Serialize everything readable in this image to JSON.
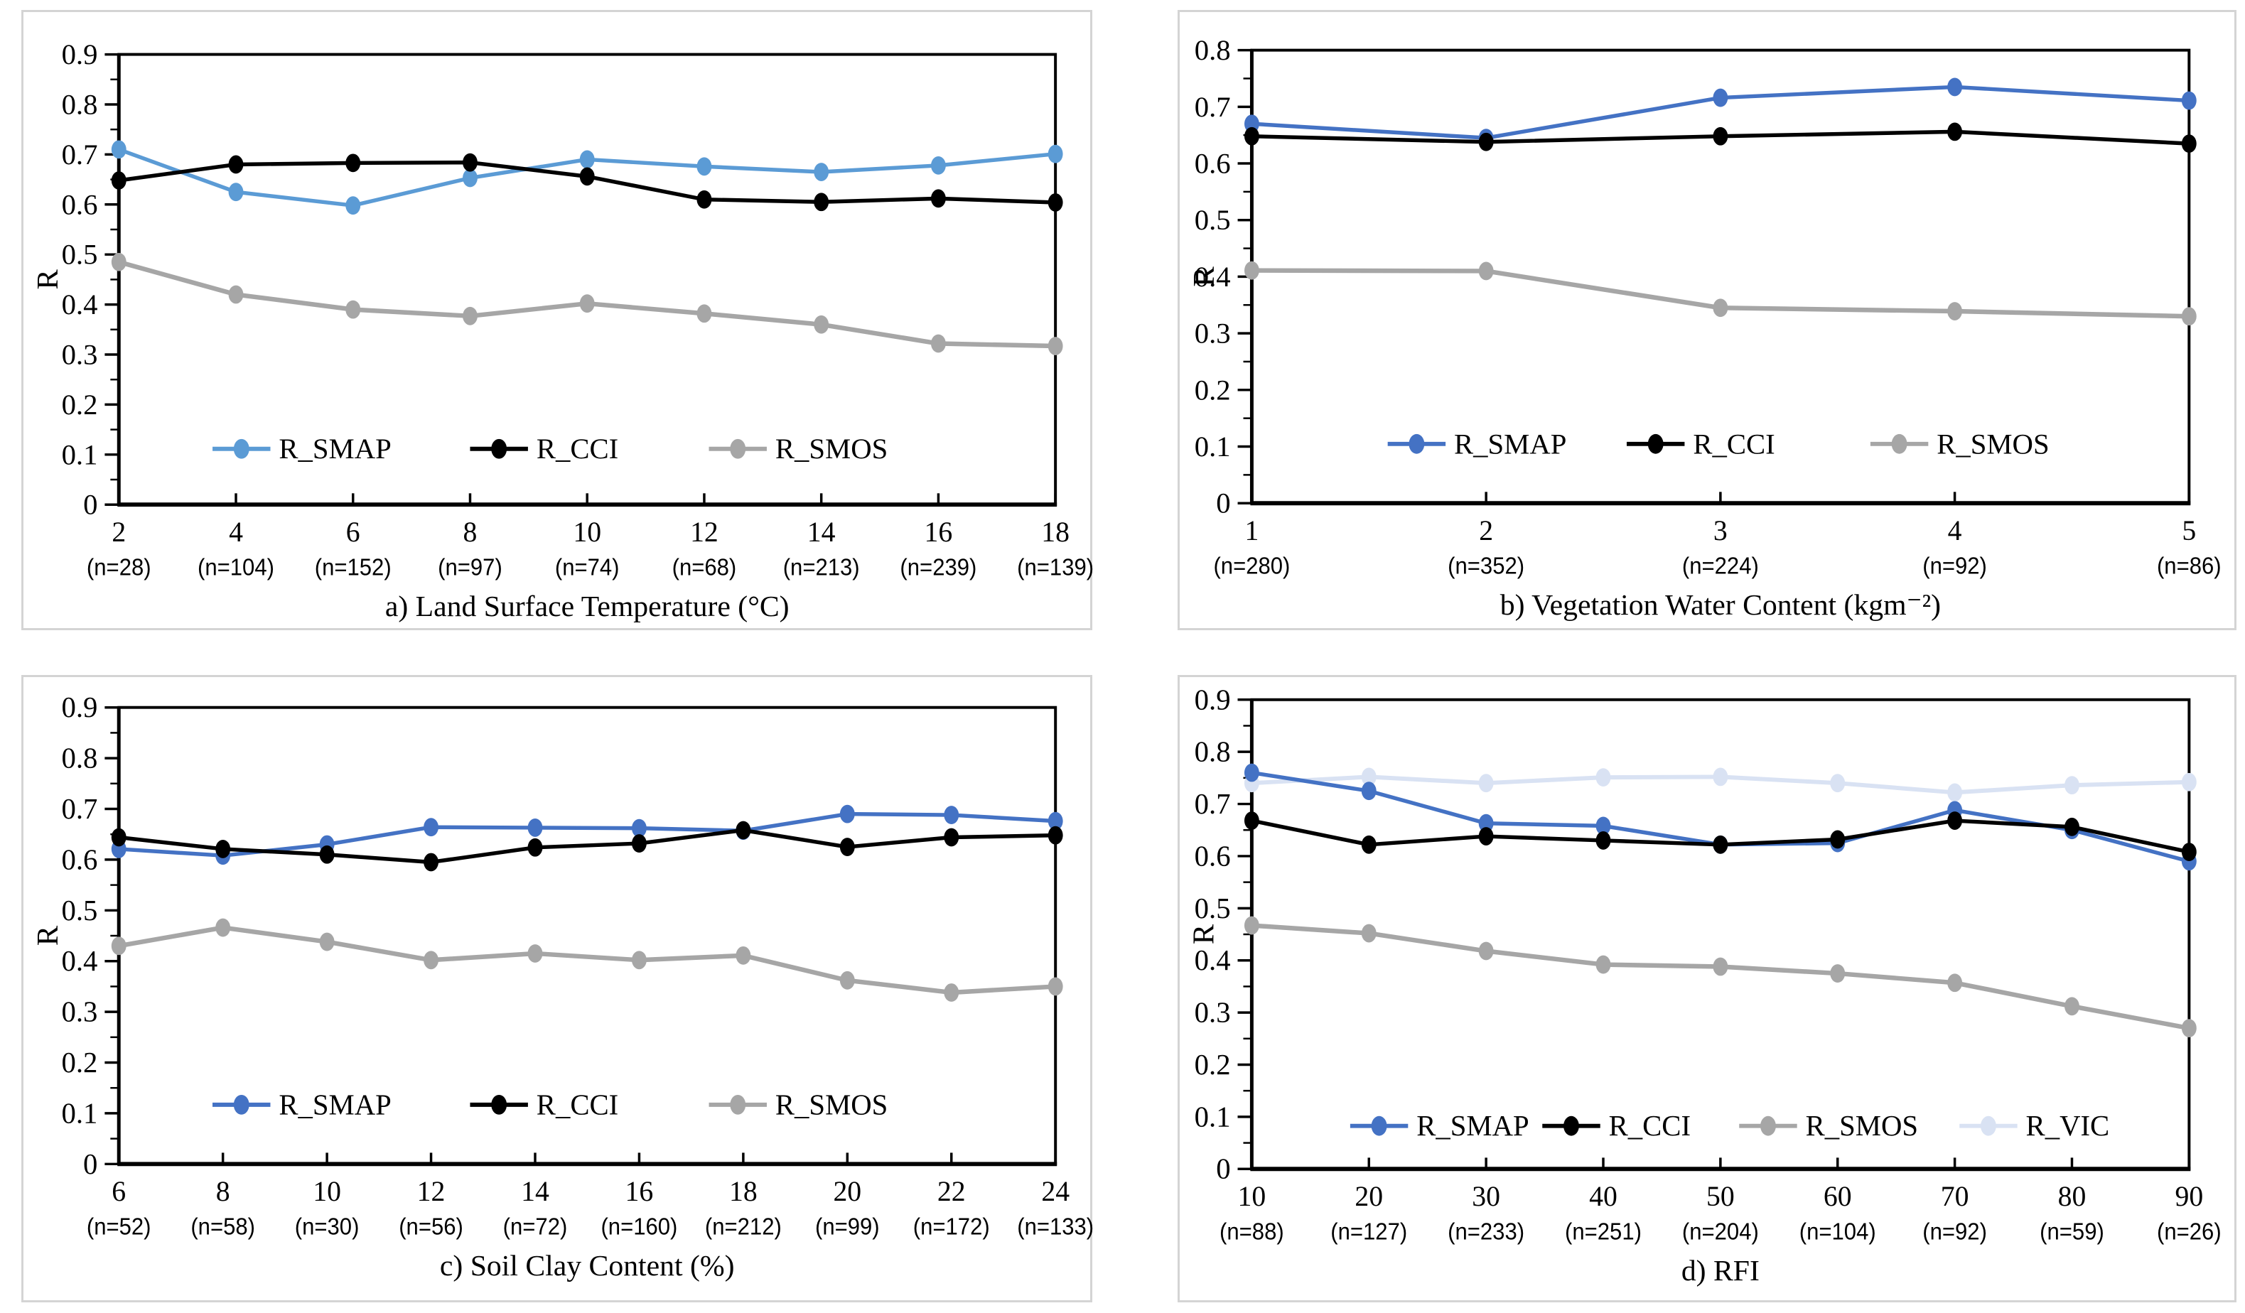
{
  "figure": {
    "ylabel": "R",
    "legend_entries": [
      "R_SMAP",
      "R_CCI",
      "R_SMOS",
      "R_VIC"
    ],
    "colors": {
      "smap_panel_a": "#5B9BD5",
      "smap_panels_bcd": "#4472C4",
      "cci": "#000000",
      "smos": "#A6A6A6",
      "vic": "#D9E2F3"
    }
  },
  "chart_data": [
    {
      "type": "line",
      "panel": "a",
      "title": "a) Land Surface Temperature (°C)",
      "ylabel": "R",
      "ylim": [
        0,
        0.9
      ],
      "grid": false,
      "legend_position": "inside-bottom",
      "yticks": [
        "0",
        "0.1",
        "0.2",
        "0.3",
        "0.4",
        "0.5",
        "0.6",
        "0.7",
        "0.8",
        "0.9"
      ],
      "categories": [
        "2",
        "4",
        "6",
        "8",
        "10",
        "12",
        "14",
        "16",
        "18"
      ],
      "counts": [
        "(n=28)",
        "(n=104)",
        "(n=152)",
        "(n=97)",
        "(n=74)",
        "(n=68)",
        "(n=213)",
        "(n=239)",
        "(n=139)"
      ],
      "series": [
        {
          "name": "R_SMAP",
          "color": "#5B9BD5",
          "z": 3,
          "values": [
            0.71,
            0.625,
            0.598,
            0.653,
            0.69,
            0.676,
            0.665,
            0.678,
            0.701
          ]
        },
        {
          "name": "R_CCI",
          "color": "#000000",
          "z": 4,
          "values": [
            0.648,
            0.68,
            0.683,
            0.684,
            0.656,
            0.61,
            0.605,
            0.612,
            0.604
          ]
        },
        {
          "name": "R_SMOS",
          "color": "#A6A6A6",
          "z": 2,
          "values": [
            0.485,
            0.42,
            0.39,
            0.377,
            0.402,
            0.382,
            0.36,
            0.322,
            0.317
          ]
        }
      ]
    },
    {
      "type": "line",
      "panel": "b",
      "title": "b) Vegetation Water Content (kgm⁻²)",
      "ylabel": "R",
      "ylim": [
        0,
        0.8
      ],
      "grid": false,
      "legend_position": "inside-bottom",
      "yticks": [
        "0",
        "0.1",
        "0.2",
        "0.3",
        "0.4",
        "0.5",
        "0.6",
        "0.7",
        "0.8"
      ],
      "categories": [
        "1",
        "2",
        "3",
        "4",
        "5"
      ],
      "counts": [
        "(n=280)",
        "(n=352)",
        "(n=224)",
        "(n=92)",
        "(n=86)"
      ],
      "series": [
        {
          "name": "R_SMAP",
          "color": "#4472C4",
          "z": 3,
          "values": [
            0.67,
            0.645,
            0.716,
            0.735,
            0.711
          ]
        },
        {
          "name": "R_CCI",
          "color": "#000000",
          "z": 4,
          "values": [
            0.648,
            0.638,
            0.648,
            0.656,
            0.635
          ]
        },
        {
          "name": "R_SMOS",
          "color": "#A6A6A6",
          "z": 2,
          "values": [
            0.411,
            0.41,
            0.345,
            0.339,
            0.33
          ]
        }
      ]
    },
    {
      "type": "line",
      "panel": "c",
      "title": "c) Soil Clay Content (%)",
      "ylabel": "R",
      "ylim": [
        0,
        0.9
      ],
      "grid": false,
      "legend_position": "inside-bottom",
      "yticks": [
        "0",
        "0.1",
        "0.2",
        "0.3",
        "0.4",
        "0.5",
        "0.6",
        "0.7",
        "0.8",
        "0.9"
      ],
      "categories": [
        "6",
        "8",
        "10",
        "12",
        "14",
        "16",
        "18",
        "20",
        "22",
        "24"
      ],
      "counts": [
        "(n=52)",
        "(n=58)",
        "(n=30)",
        "(n=56)",
        "(n=72)",
        "(n=160)",
        "(n=212)",
        "(n=99)",
        "(n=172)",
        "(n=133)"
      ],
      "series": [
        {
          "name": "R_SMAP",
          "color": "#4472C4",
          "z": 3,
          "values": [
            0.621,
            0.608,
            0.63,
            0.664,
            0.663,
            0.662,
            0.657,
            0.69,
            0.688,
            0.676
          ]
        },
        {
          "name": "R_CCI",
          "color": "#000000",
          "z": 4,
          "values": [
            0.644,
            0.621,
            0.61,
            0.595,
            0.624,
            0.632,
            0.658,
            0.625,
            0.644,
            0.648
          ]
        },
        {
          "name": "R_SMOS",
          "color": "#A6A6A6",
          "z": 2,
          "values": [
            0.43,
            0.466,
            0.438,
            0.402,
            0.415,
            0.402,
            0.411,
            0.362,
            0.338,
            0.35
          ]
        }
      ]
    },
    {
      "type": "line",
      "panel": "d",
      "title": "d) RFI",
      "ylabel": "R",
      "ylim": [
        0,
        0.9
      ],
      "grid": false,
      "legend_position": "inside-bottom",
      "yticks": [
        "0",
        "0.1",
        "0.2",
        "0.3",
        "0.4",
        "0.5",
        "0.6",
        "0.7",
        "0.8",
        "0.9"
      ],
      "categories": [
        "10",
        "20",
        "30",
        "40",
        "50",
        "60",
        "70",
        "80",
        "90"
      ],
      "counts": [
        "(n=88)",
        "(n=127)",
        "(n=233)",
        "(n=251)",
        "(n=204)",
        "(n=104)",
        "(n=92)",
        "(n=59)",
        "(n=26)"
      ],
      "series": [
        {
          "name": "R_SMAP",
          "color": "#4472C4",
          "z": 3,
          "values": [
            0.76,
            0.725,
            0.663,
            0.658,
            0.622,
            0.625,
            0.688,
            0.65,
            0.59
          ]
        },
        {
          "name": "R_CCI",
          "color": "#000000",
          "z": 4,
          "values": [
            0.668,
            0.622,
            0.638,
            0.63,
            0.622,
            0.632,
            0.668,
            0.656,
            0.608
          ]
        },
        {
          "name": "R_SMOS",
          "color": "#A6A6A6",
          "z": 2,
          "values": [
            0.467,
            0.452,
            0.418,
            0.392,
            0.388,
            0.375,
            0.357,
            0.312,
            0.27
          ]
        },
        {
          "name": "R_VIC",
          "color": "#D9E2F3",
          "z": 1,
          "values": [
            0.74,
            0.752,
            0.74,
            0.751,
            0.752,
            0.74,
            0.722,
            0.736,
            0.742
          ]
        }
      ]
    }
  ]
}
